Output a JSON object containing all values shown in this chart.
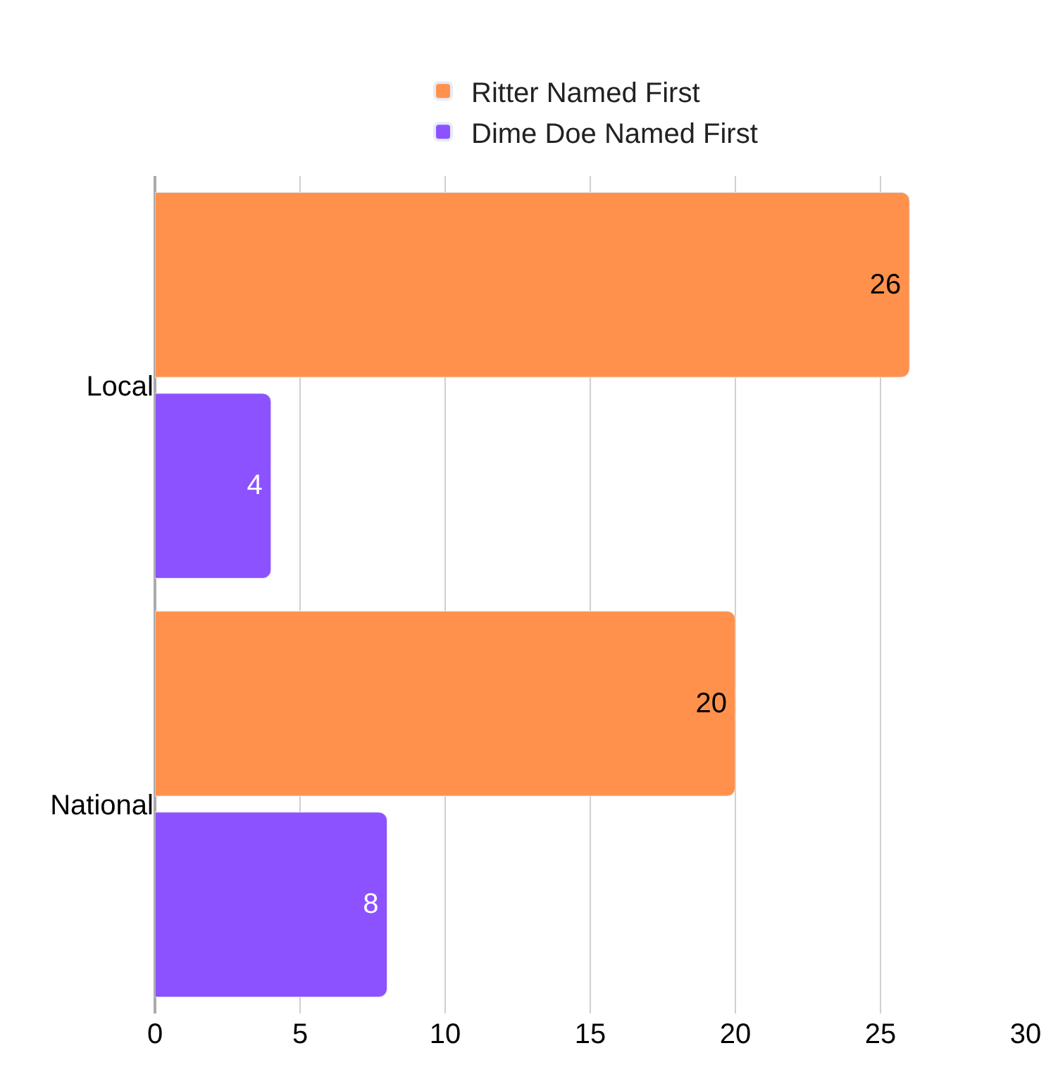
{
  "chart_data": {
    "type": "bar",
    "orientation": "horizontal",
    "categories": [
      "Local",
      "National"
    ],
    "series": [
      {
        "name": "Ritter Named First",
        "color": "#ff914d",
        "values": [
          26,
          20
        ]
      },
      {
        "name": "Dime Doe Named First",
        "color": "#8c52ff",
        "values": [
          4,
          8
        ]
      }
    ],
    "xlim": [
      0,
      30
    ],
    "xticks": [
      0,
      5,
      10,
      15,
      20,
      25,
      30
    ],
    "grid": "x",
    "legend": "top",
    "data_labels": true
  }
}
